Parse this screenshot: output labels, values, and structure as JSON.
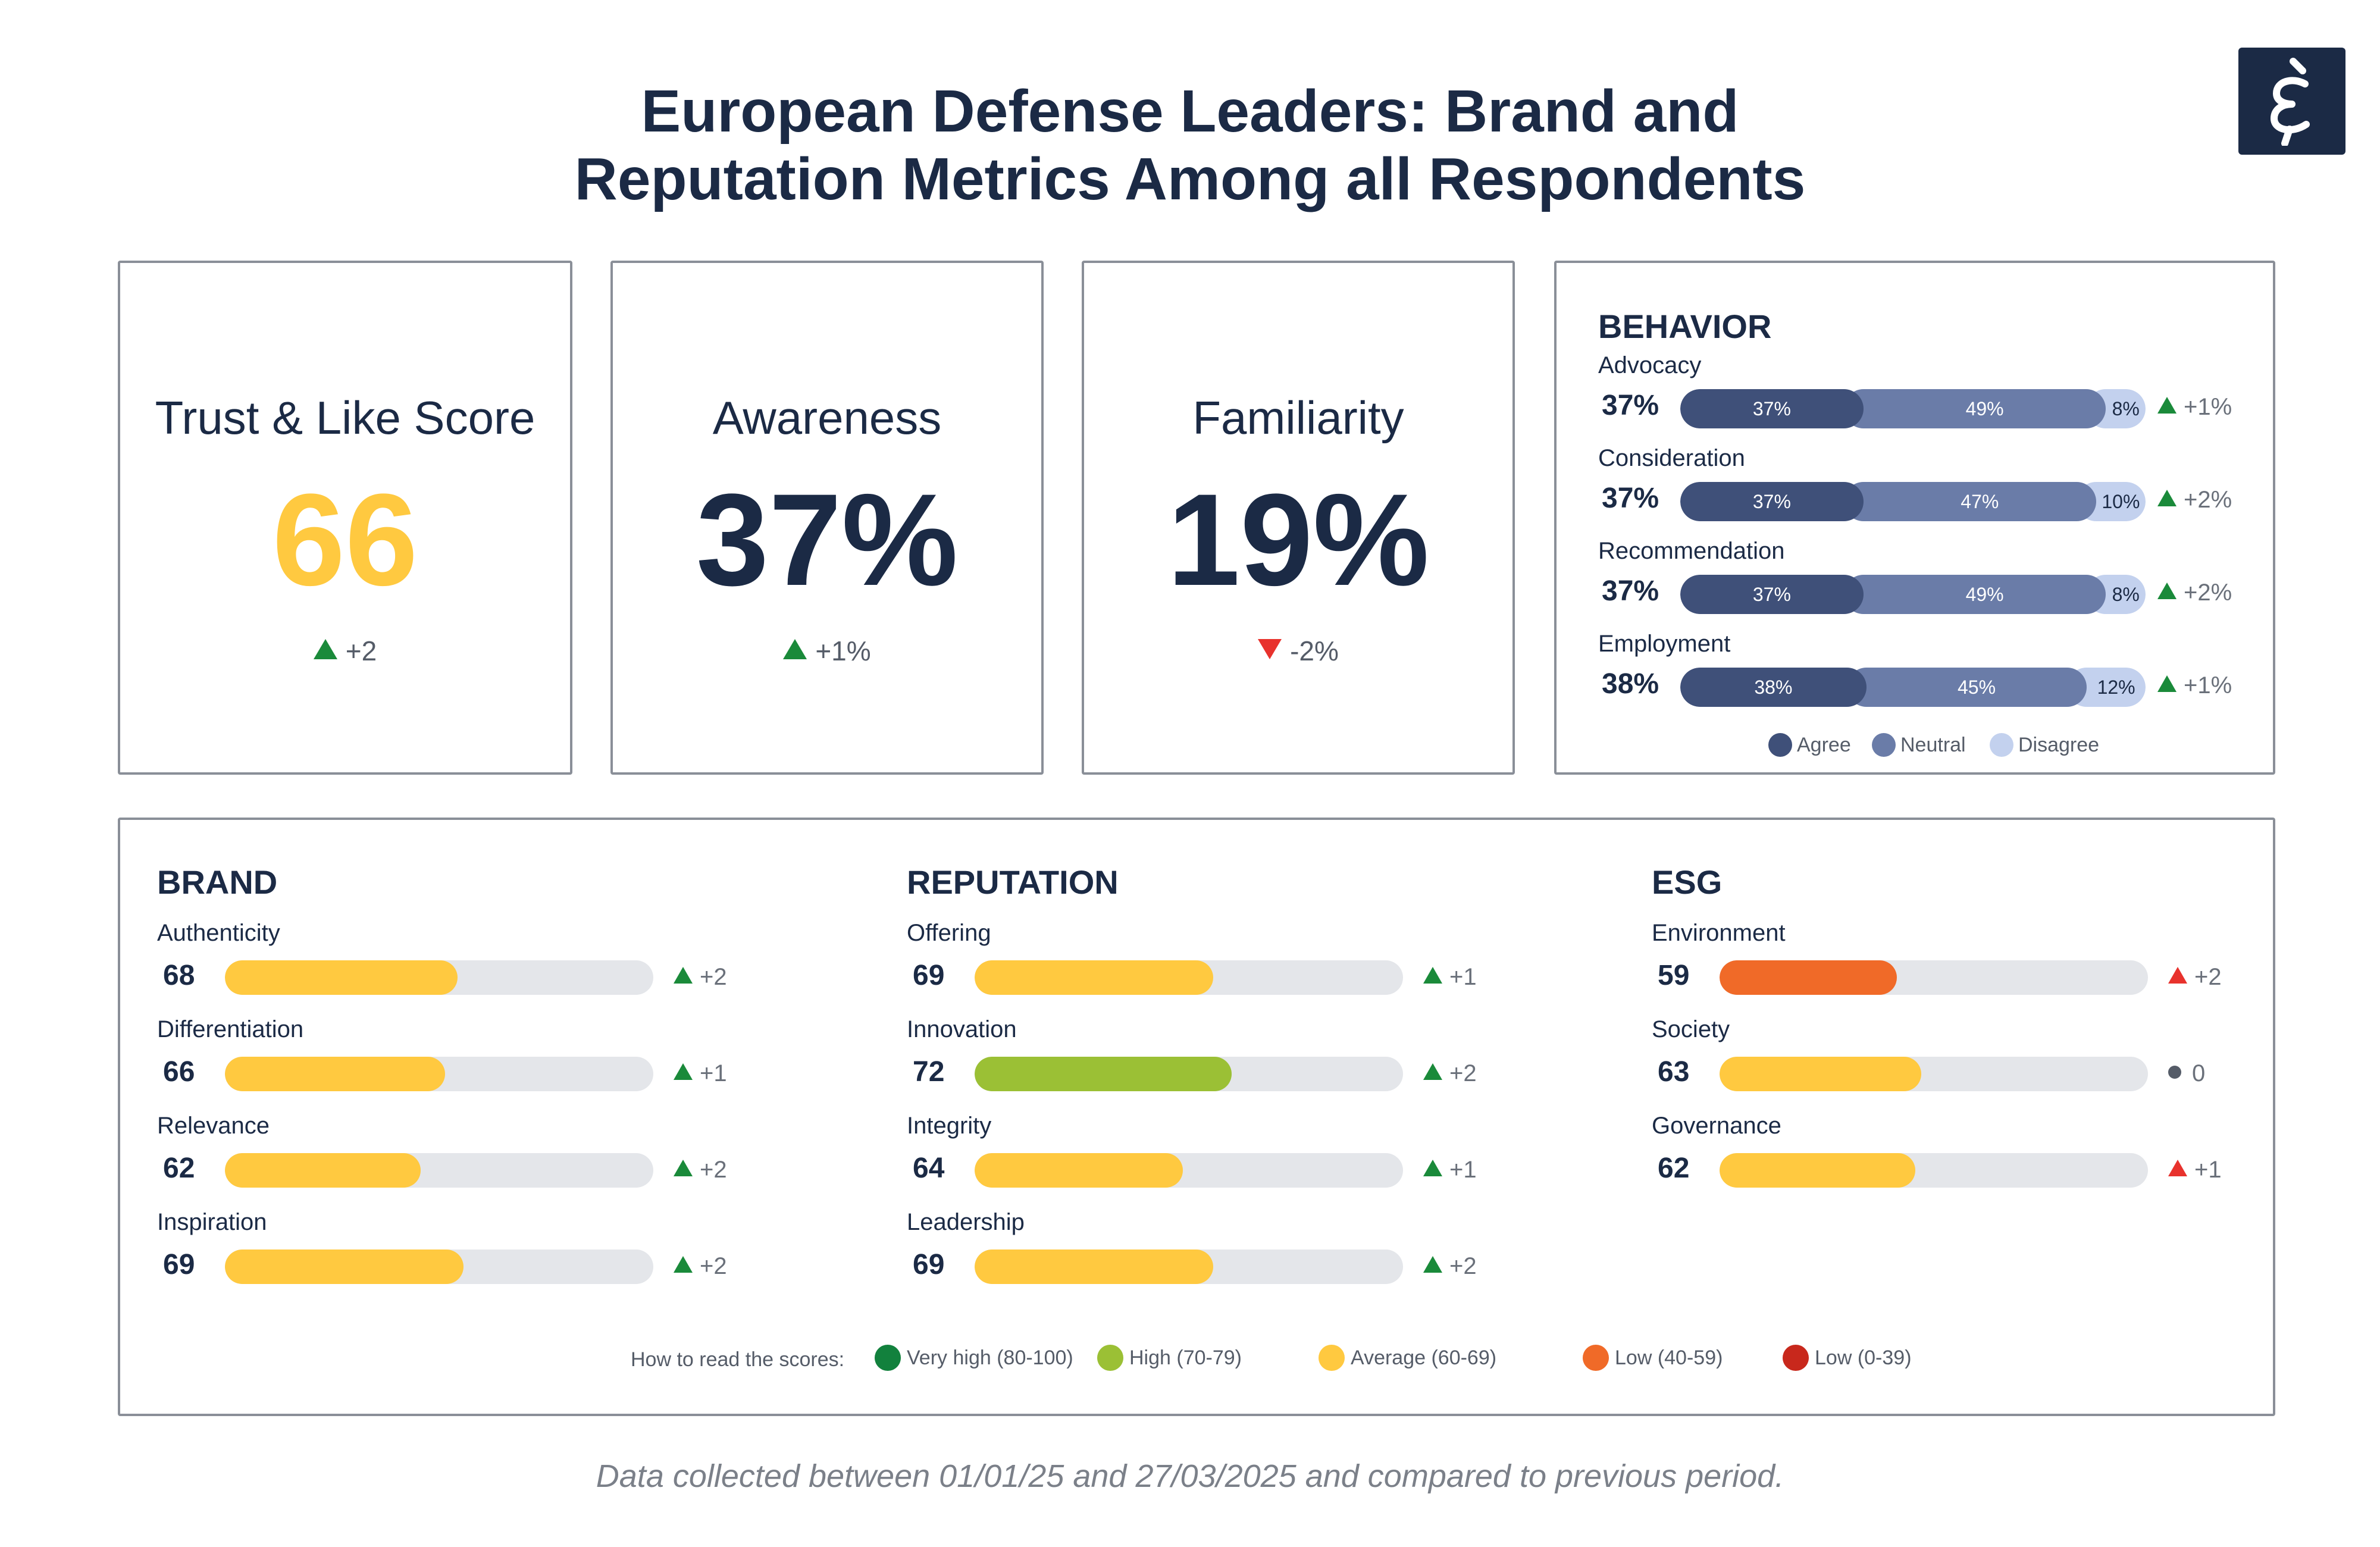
{
  "title_line1": "European Defense Leaders: Brand and",
  "title_line2": "Reputation Metrics Among all Respondents",
  "logo_glyph": "ɛ́",
  "kpis": [
    {
      "label": "Trust & Like Score",
      "value": "66",
      "change": "+2",
      "direction": "up",
      "value_color": "#ffc940"
    },
    {
      "label": "Awareness",
      "value": "37%",
      "change": "+1%",
      "direction": "up",
      "value_color": "#1b2a45"
    },
    {
      "label": "Familiarity",
      "value": "19%",
      "change": "-2%",
      "direction": "down",
      "value_color": "#1b2a45"
    }
  ],
  "behavior": {
    "title": "BEHAVIOR",
    "rows": [
      {
        "label": "Advocacy",
        "score": "37%",
        "agree": 37,
        "neutral": 49,
        "disagree": 8,
        "agree_label": "37%",
        "neutral_label": "49%",
        "disagree_label": "8%",
        "change": "+1%"
      },
      {
        "label": "Consideration",
        "score": "37%",
        "agree": 37,
        "neutral": 47,
        "disagree": 10,
        "agree_label": "37%",
        "neutral_label": "47%",
        "disagree_label": "10%",
        "change": "+2%"
      },
      {
        "label": "Recommendation",
        "score": "37%",
        "agree": 37,
        "neutral": 49,
        "disagree": 8,
        "agree_label": "37%",
        "neutral_label": "49%",
        "disagree_label": "8%",
        "change": "+2%"
      },
      {
        "label": "Employment",
        "score": "38%",
        "agree": 38,
        "neutral": 45,
        "disagree": 12,
        "agree_label": "38%",
        "neutral_label": "45%",
        "disagree_label": "12%",
        "change": "+1%"
      }
    ],
    "legend": [
      {
        "label": "Agree",
        "color": "#3f5079"
      },
      {
        "label": "Neutral",
        "color": "#6a7ca8"
      },
      {
        "label": "Disagree",
        "color": "#c3d1ee"
      }
    ]
  },
  "groups": [
    {
      "title": "BRAND",
      "rows": [
        {
          "label": "Authenticity",
          "score": "68",
          "value": 68,
          "change": "+2",
          "trend": "up-green",
          "color": "#ffc940"
        },
        {
          "label": "Differentiation",
          "score": "66",
          "value": 66,
          "change": "+1",
          "trend": "up-green",
          "color": "#ffc940"
        },
        {
          "label": "Relevance",
          "score": "62",
          "value": 62,
          "change": "+2",
          "trend": "up-green",
          "color": "#ffc940"
        },
        {
          "label": "Inspiration",
          "score": "69",
          "value": 69,
          "change": "+2",
          "trend": "up-green",
          "color": "#ffc940"
        }
      ]
    },
    {
      "title": "REPUTATION",
      "rows": [
        {
          "label": "Offering",
          "score": "69",
          "value": 69,
          "change": "+1",
          "trend": "up-green",
          "color": "#ffc940"
        },
        {
          "label": "Innovation",
          "score": "72",
          "value": 72,
          "change": "+2",
          "trend": "up-green",
          "color": "#9bc035"
        },
        {
          "label": "Integrity",
          "score": "64",
          "value": 64,
          "change": "+1",
          "trend": "up-green",
          "color": "#ffc940"
        },
        {
          "label": "Leadership",
          "score": "69",
          "value": 69,
          "change": "+2",
          "trend": "up-green",
          "color": "#ffc940"
        }
      ]
    },
    {
      "title": "ESG",
      "rows": [
        {
          "label": "Environment",
          "score": "59",
          "value": 59,
          "change": "+2",
          "trend": "up-red",
          "color": "#f06a28"
        },
        {
          "label": "Society",
          "score": "63",
          "value": 63,
          "change": "0",
          "trend": "neutral",
          "color": "#ffc940"
        },
        {
          "label": "Governance",
          "score": "62",
          "value": 62,
          "change": "+1",
          "trend": "up-red",
          "color": "#ffc940"
        }
      ]
    }
  ],
  "score_legend": {
    "intro": "How to read the scores:",
    "items": [
      {
        "label": "Very high (80-100)",
        "color": "#12813d"
      },
      {
        "label": "High (70-79)",
        "color": "#9bc035"
      },
      {
        "label": "Average (60-69)",
        "color": "#ffc940"
      },
      {
        "label": "Low (40-59)",
        "color": "#f06a28"
      },
      {
        "label": "Low (0-39)",
        "color": "#c8281c"
      }
    ]
  },
  "footer": "Data collected between 01/01/25 and 27/03/2025 and compared to previous period.",
  "chart_data": {
    "type": "bar",
    "categories": [
      "Authenticity",
      "Differentiation",
      "Relevance",
      "Inspiration",
      "Offering",
      "Innovation",
      "Integrity",
      "Leadership",
      "Environment",
      "Society",
      "Governance"
    ],
    "values": [
      68,
      66,
      62,
      69,
      69,
      72,
      64,
      69,
      59,
      63,
      62
    ],
    "changes": [
      "+2",
      "+1",
      "+2",
      "+2",
      "+1",
      "+2",
      "+1",
      "+2",
      "+2",
      "0",
      "+1"
    ],
    "behavior_series": [
      {
        "name": "Agree",
        "values": [
          37,
          37,
          37,
          38
        ]
      },
      {
        "name": "Neutral",
        "values": [
          49,
          47,
          49,
          45
        ]
      },
      {
        "name": "Disagree",
        "values": [
          8,
          10,
          8,
          12
        ]
      }
    ],
    "behavior_categories": [
      "Advocacy",
      "Consideration",
      "Recommendation",
      "Employment"
    ],
    "xlim": [
      0,
      100
    ]
  }
}
